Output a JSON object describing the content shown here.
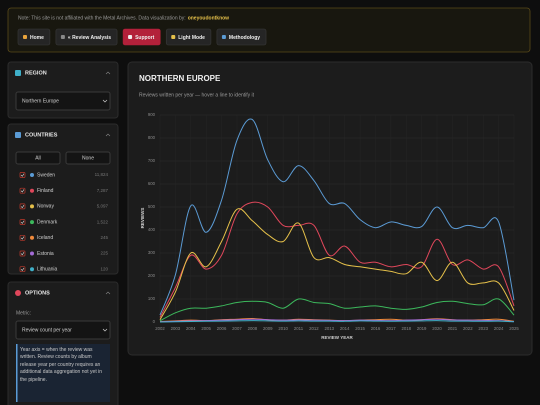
{
  "banner": {
    "note": "Note: This site is not affiliated with the Metal Archives. Data visualization by:",
    "author": "oneyoudontknow"
  },
  "nav": [
    "Home",
    "« Review Analysis",
    "Support",
    "Light Mode",
    "Methodology"
  ],
  "region": {
    "title": "REGION",
    "selected": "Northern Europe"
  },
  "countries": {
    "title": "COUNTRIES",
    "all": "All",
    "none": "None",
    "items": [
      {
        "name": "Sweden",
        "count": "11,824"
      },
      {
        "name": "Finland",
        "count": "7,287"
      },
      {
        "name": "Norway",
        "count": "5,097"
      },
      {
        "name": "Denmark",
        "count": "1,522"
      },
      {
        "name": "Iceland",
        "count": "245"
      },
      {
        "name": "Estonia",
        "count": "225"
      },
      {
        "name": "Lithuania",
        "count": "120"
      }
    ]
  },
  "options": {
    "title": "OPTIONS",
    "metric_label": "Metric:",
    "metric": "Review count per year",
    "note": "Year axis = when the review was written. Review counts by album release year per country requires an additional data aggregation not yet in the pipeline."
  },
  "chart_data": {
    "type": "line",
    "title": "NORTHERN EUROPE",
    "subtitle": "Reviews written per year — hover a line to identify it",
    "x_label": "REVIEW YEAR",
    "y_label": "REVIEWS",
    "x": [
      2002,
      2003,
      2004,
      2005,
      2006,
      2007,
      2008,
      2009,
      2010,
      2011,
      2012,
      2013,
      2014,
      2015,
      2016,
      2017,
      2018,
      2019,
      2020,
      2021,
      2022,
      2023,
      2024,
      2025
    ],
    "xlim": [
      2002,
      2025
    ],
    "xticks": [
      2002,
      2003,
      2004,
      2005,
      2006,
      2007,
      2008,
      2009,
      2010,
      2011,
      2012,
      2013,
      2014,
      2015,
      2016,
      2017,
      2018,
      2019,
      2020,
      2021,
      2022,
      2023,
      2024,
      2025
    ],
    "ylim": [
      0,
      900
    ],
    "yticks": [
      0,
      100,
      200,
      300,
      400,
      500,
      600,
      700,
      800,
      900
    ],
    "grid": true,
    "series": [
      {
        "name": "Sweden",
        "color": "#5b9bd5",
        "values": [
          30,
          205,
          505,
          390,
          530,
          790,
          880,
          705,
          610,
          680,
          615,
          515,
          515,
          445,
          410,
          435,
          420,
          415,
          500,
          410,
          420,
          410,
          435,
          95
        ]
      },
      {
        "name": "Finland",
        "color": "#e0475b",
        "values": [
          20,
          150,
          290,
          230,
          290,
          470,
          520,
          500,
          420,
          420,
          420,
          290,
          330,
          260,
          260,
          240,
          250,
          240,
          360,
          250,
          270,
          230,
          240,
          70
        ]
      },
      {
        "name": "Norway",
        "color": "#e5c04a",
        "values": [
          10,
          130,
          300,
          240,
          350,
          490,
          440,
          380,
          350,
          430,
          280,
          280,
          250,
          240,
          230,
          220,
          210,
          260,
          180,
          260,
          170,
          170,
          170,
          50
        ]
      },
      {
        "name": "Denmark",
        "color": "#3cb85c",
        "values": [
          5,
          40,
          60,
          60,
          70,
          85,
          90,
          85,
          60,
          100,
          85,
          80,
          60,
          65,
          70,
          60,
          55,
          65,
          85,
          90,
          80,
          75,
          100,
          30
        ]
      },
      {
        "name": "Iceland",
        "color": "#f08a3c",
        "values": [
          2,
          5,
          8,
          6,
          10,
          12,
          15,
          10,
          8,
          12,
          10,
          8,
          6,
          8,
          10,
          12,
          8,
          10,
          14,
          10,
          8,
          10,
          12,
          3
        ]
      },
      {
        "name": "Estonia",
        "color": "#a36bd6",
        "values": [
          1,
          3,
          5,
          6,
          8,
          10,
          12,
          10,
          8,
          9,
          8,
          7,
          6,
          8,
          7,
          6,
          8,
          10,
          12,
          9,
          8,
          7,
          6,
          2
        ]
      },
      {
        "name": "Lithuania",
        "color": "#3fb0c9",
        "values": [
          0,
          1,
          2,
          3,
          4,
          5,
          6,
          5,
          4,
          5,
          4,
          4,
          3,
          5,
          4,
          3,
          4,
          5,
          6,
          4,
          4,
          3,
          4,
          1
        ]
      }
    ]
  }
}
